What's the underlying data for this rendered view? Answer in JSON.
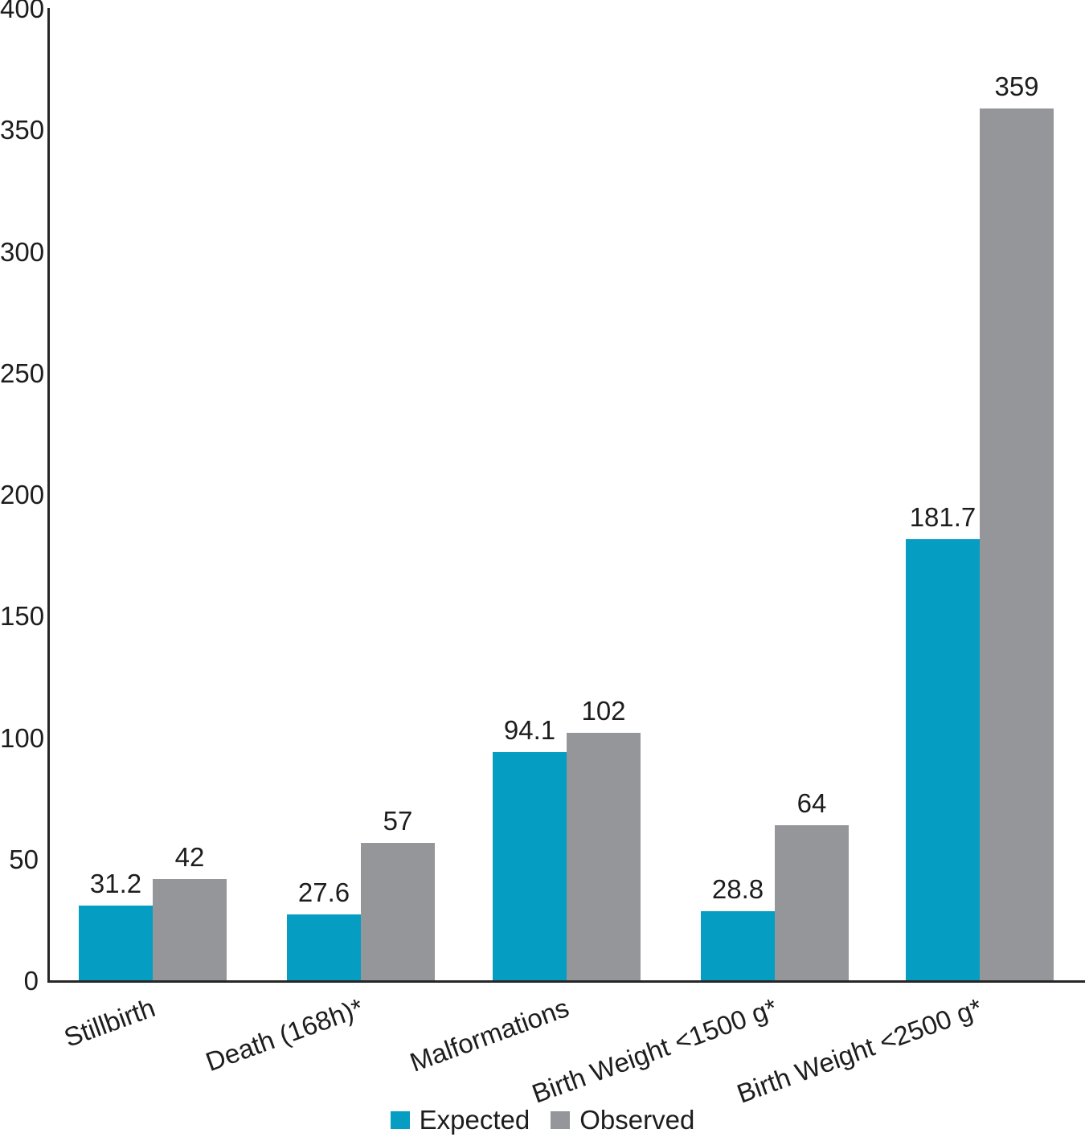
{
  "chart_data": {
    "type": "bar",
    "categories": [
      "Stillbirth",
      "Death (168h)*",
      "Malformations",
      "Birth Weight <1500 g*",
      "Birth Weight <2500 g*"
    ],
    "series": [
      {
        "name": "Expected",
        "color": "#059EC2",
        "values": [
          31.2,
          27.6,
          94.1,
          28.8,
          181.7
        ]
      },
      {
        "name": "Observed",
        "color": "#949699",
        "values": [
          42,
          57,
          102,
          64,
          359
        ]
      }
    ],
    "value_labels": {
      "Expected": [
        "31.2",
        "27.6",
        "94.1",
        "28.8",
        "181.7"
      ],
      "Observed": [
        "42",
        "57",
        "102",
        "64",
        "359"
      ]
    },
    "title": "",
    "xlabel": "",
    "ylabel": "",
    "ylim": [
      0,
      400
    ],
    "yticks": [
      0,
      50,
      100,
      150,
      200,
      250,
      300,
      350,
      400
    ],
    "grid": false,
    "legend_position": "bottom-center",
    "axis_color": "#262626",
    "text_color": "#1d1d1f"
  }
}
